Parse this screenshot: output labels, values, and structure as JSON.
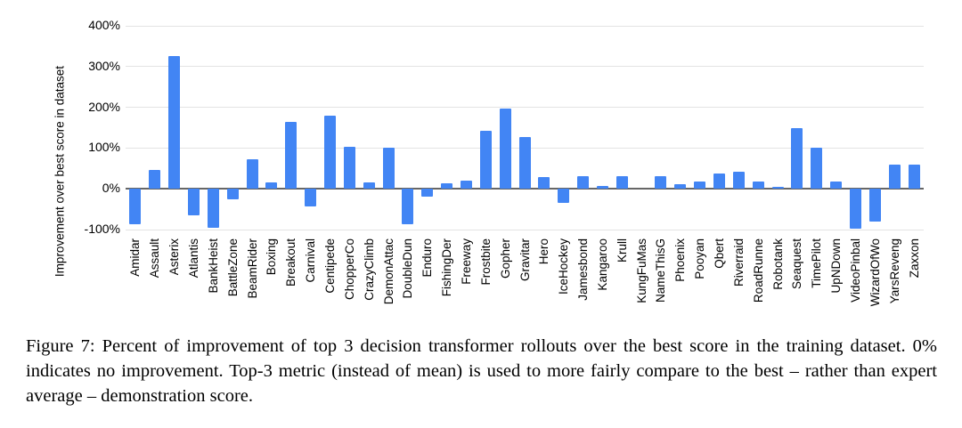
{
  "figure": {
    "caption": "Figure 7: Percent of improvement of top 3 decision transformer rollouts over the best score in the training dataset. 0% indicates no improvement. Top-3 metric (instead of mean) is used to more fairly compare to the best – rather than expert average – demonstration score."
  },
  "chart_data": {
    "type": "bar",
    "title": "",
    "xlabel": "",
    "ylabel": "Improvement over best score in dataset",
    "ylim": [
      -100,
      400
    ],
    "yticks": [
      400,
      300,
      200,
      100,
      0,
      -100
    ],
    "ytick_labels": [
      "400%",
      "300%",
      "200%",
      "100%",
      "0%",
      "-100%"
    ],
    "grid": true,
    "legend_position": "none",
    "bar_color": "#4285f4",
    "gridline_color": "#e3e3e3",
    "zero_line_color": "#666666",
    "categories": [
      "Amidar",
      "Assault",
      "Asterix",
      "Atlantis",
      "BankHeist",
      "BattleZone",
      "BeamRider",
      "Boxing",
      "Breakout",
      "Carnival",
      "Centipede",
      "ChopperCo",
      "CrazyClimb",
      "DemonAttac",
      "DoubleDun",
      "Enduro",
      "FishingDer",
      "Freeway",
      "Frostbite",
      "Gopher",
      "Gravitar",
      "Hero",
      "IceHockey",
      "Jamesbond",
      "Kangaroo",
      "Krull",
      "KungFuMas",
      "NameThisG",
      "Phoenix",
      "Pooyan",
      "Qbert",
      "Riverraid",
      "RoadRunne",
      "Robotank",
      "Seaquest",
      "TimePilot",
      "UpNDown",
      "VideoPinbal",
      "WizardOfWo",
      "YarsReveng",
      "Zaxxon"
    ],
    "values": [
      -88,
      47,
      325,
      -66,
      -96,
      -25,
      72,
      15,
      164,
      -43,
      180,
      103,
      15,
      101,
      -87,
      -20,
      13,
      21,
      143,
      196,
      126,
      28,
      -35,
      31,
      6,
      30,
      0,
      30,
      11,
      17,
      38,
      41,
      17,
      5,
      148,
      101,
      17,
      -98,
      -81,
      59,
      59
    ]
  }
}
